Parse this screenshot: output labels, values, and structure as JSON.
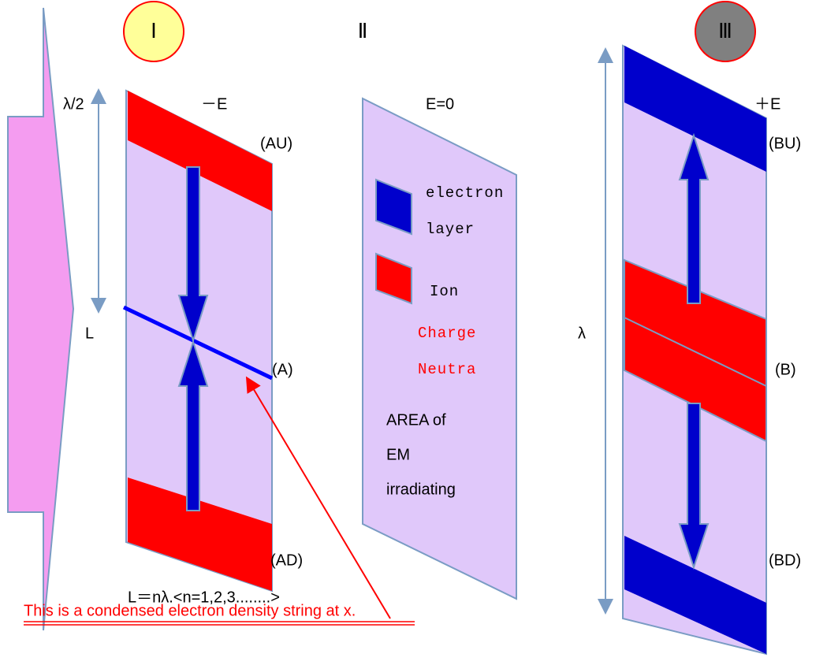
{
  "header": {
    "panel_1": "Ⅰ",
    "panel_2": "Ⅱ",
    "panel_3": "Ⅲ"
  },
  "panel_1": {
    "half_wavelength": "λ/2",
    "field": "－E",
    "upper": "(AU)",
    "length": "L",
    "middle": "(A)",
    "lower": "(AD)",
    "formula": "L＝nλ.<n=1,2,3........>"
  },
  "annotation": "This is a condensed electron density string at x.",
  "panel_2": {
    "field": "E=0",
    "legend": [
      {
        "label": [
          "electron",
          "layer"
        ]
      },
      {
        "label": [
          "Ion"
        ]
      }
    ],
    "charge": [
      "Charge",
      "Neutra"
    ],
    "area": [
      "AREA of",
      "EM",
      "irradiating"
    ]
  },
  "panel_3": {
    "field": "＋E",
    "upper": "(BU)",
    "wavelength": "λ",
    "middle": "(B)",
    "lower": "(BD)"
  }
}
